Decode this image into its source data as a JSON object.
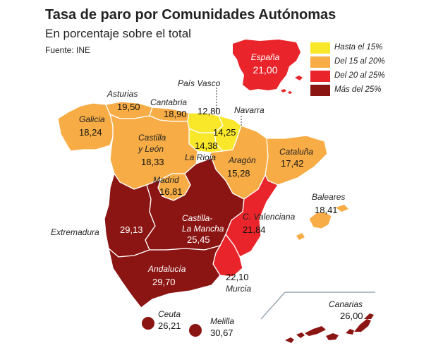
{
  "header": {
    "title": "Tasa de paro por Comunidades Autónomas",
    "subtitle": "En porcentaje sobre el total",
    "source": "Fuente: INE"
  },
  "colors": {
    "hasta_15": "#f9e72a",
    "del_15_20": "#f7ac45",
    "del_20_25": "#e9242b",
    "mas_25": "#8b1513",
    "border": "#ffffff"
  },
  "legend": [
    {
      "label": "Hasta el 15%",
      "color": "#f9e72a"
    },
    {
      "label": "Del 15 al 20%",
      "color": "#f7ac45"
    },
    {
      "label": "Del 20 al 25%",
      "color": "#e9242b"
    },
    {
      "label": "Más del 25%",
      "color": "#8b1513"
    }
  ],
  "spain": {
    "name": "España",
    "value": "21,00"
  },
  "regions": {
    "galicia": {
      "name": "Galicia",
      "value": "18,24"
    },
    "asturias": {
      "name": "Asturias",
      "value": "19,50"
    },
    "cantabria": {
      "name": "Cantabria",
      "value": "18,90"
    },
    "pais_vasco": {
      "name": "País Vasco",
      "value": "12,80"
    },
    "navarra": {
      "name": "Navarra",
      "value": "14,25"
    },
    "la_rioja": {
      "name": "La Rioja",
      "value": "14,38"
    },
    "castilla_leon": {
      "name_line1": "Castilla",
      "name_line2": "y León",
      "value": "18,33"
    },
    "aragon": {
      "name": "Aragón",
      "value": "15,28"
    },
    "cataluna": {
      "name": "Cataluña",
      "value": "17,42"
    },
    "madrid": {
      "name": "Madrid",
      "value": "16,81"
    },
    "baleares": {
      "name": "Baleares",
      "value": "18,41"
    },
    "extremadura": {
      "name": "Extremadura",
      "value": "29,13"
    },
    "castilla_mancha": {
      "name_line1": "Castilla-",
      "name_line2": "La Mancha",
      "value": "25,45"
    },
    "valenciana": {
      "name": "C. Valenciana",
      "value": "21,84"
    },
    "andalucia": {
      "name": "Andalucía",
      "value": "29,70"
    },
    "murcia": {
      "name": "Murcia",
      "value": "22,10"
    },
    "canarias": {
      "name": "Canarias",
      "value": "26,00"
    },
    "ceuta": {
      "name": "Ceuta",
      "value": "26,21"
    },
    "melilla": {
      "name": "Melilla",
      "value": "30,67"
    }
  }
}
